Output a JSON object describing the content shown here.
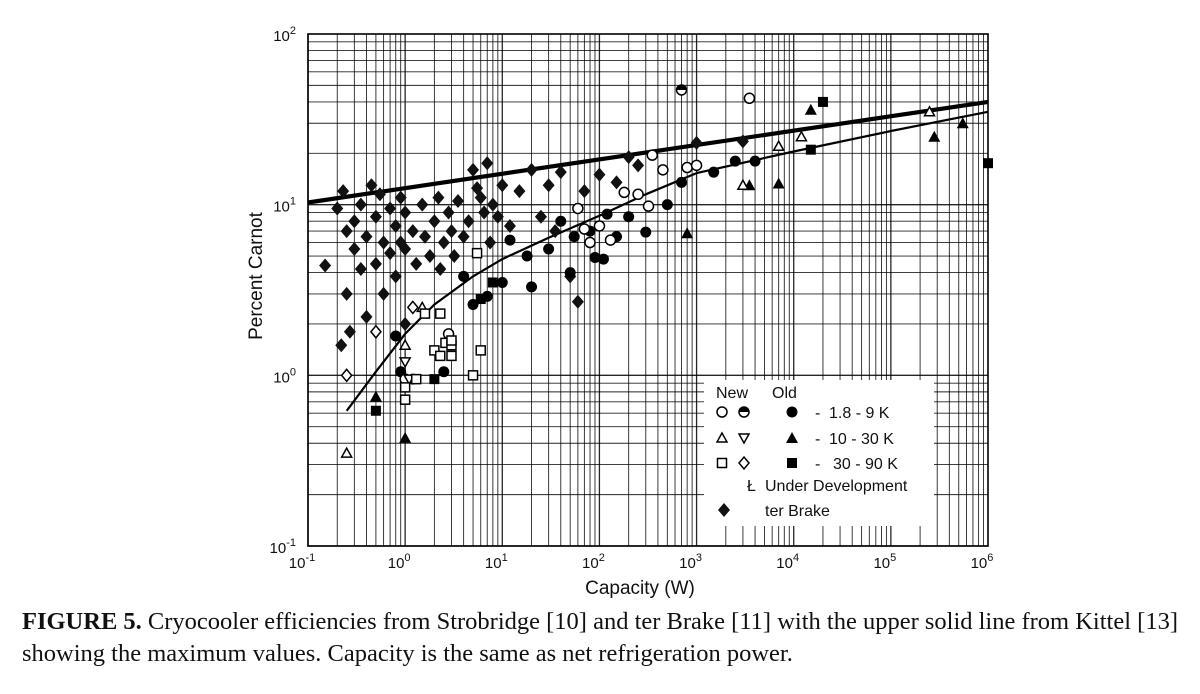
{
  "caption": {
    "label": "FIGURE 5.",
    "text": "Cryocooler efficiencies from Strobridge [10] and ter Brake [11] with the upper solid line from Kittel [13] showing the maximum values.  Capacity is the same as net refrigeration power."
  },
  "chart_data": {
    "type": "scatter",
    "title": "",
    "xlabel": "Capacity (W)",
    "ylabel": "Percent Carnot",
    "xscale": "log",
    "yscale": "log",
    "xlim": [
      0.1,
      1000000
    ],
    "ylim": [
      0.1,
      100
    ],
    "grid": true,
    "x_ticks": [
      {
        "base": "10",
        "exp": "-1"
      },
      {
        "base": "10",
        "exp": "0"
      },
      {
        "base": "10",
        "exp": "1"
      },
      {
        "base": "10",
        "exp": "2"
      },
      {
        "base": "10",
        "exp": "3"
      },
      {
        "base": "10",
        "exp": "4"
      },
      {
        "base": "10",
        "exp": "5"
      },
      {
        "base": "10",
        "exp": "6"
      }
    ],
    "y_ticks": [
      {
        "base": "10",
        "exp": "-1"
      },
      {
        "base": "10",
        "exp": "0"
      },
      {
        "base": "10",
        "exp": "1"
      },
      {
        "base": "10",
        "exp": "2"
      }
    ],
    "legend": {
      "placement": "bottom-right",
      "col_new": "New",
      "col_old": "Old",
      "dash": "-",
      "rows": [
        {
          "label": "1.8 - 9 K",
          "new": [
            "circle-open",
            "circle-half"
          ],
          "old": "circle-filled"
        },
        {
          "label": "10 - 30 K",
          "new": [
            "triangle-up-open",
            "triangle-down-open"
          ],
          "old": "triangle-filled"
        },
        {
          "label": "30 - 90 K",
          "new": [
            "square-open",
            "diamond-open"
          ],
          "old": "square-filled"
        }
      ],
      "dev_symbol": "Ł",
      "dev_label": "Under Development",
      "brake_label": "ter Brake"
    },
    "lines": [
      {
        "name": "Kittel maximum (upper solid line)",
        "style": "thick",
        "points": [
          [
            0.1,
            10.3
          ],
          [
            1000000,
            40
          ]
        ]
      },
      {
        "name": "Strobridge trend",
        "style": "thin",
        "points": [
          [
            0.25,
            0.62
          ],
          [
            0.5,
            1.05
          ],
          [
            1,
            1.75
          ],
          [
            2,
            2.6
          ],
          [
            5,
            3.8
          ],
          [
            10,
            4.8
          ],
          [
            30,
            6.4
          ],
          [
            100,
            8.6
          ],
          [
            300,
            11.5
          ],
          [
            1000,
            15.3
          ],
          [
            10000,
            20.5
          ],
          [
            100000,
            27
          ],
          [
            1000000,
            35
          ]
        ]
      }
    ],
    "series": [
      {
        "name": "Old 1.8 - 9 K",
        "marker": "circle-filled",
        "points": [
          [
            0.8,
            1.7
          ],
          [
            0.9,
            1.05
          ],
          [
            1.2,
            0.95
          ],
          [
            2.5,
            1.05
          ],
          [
            4,
            3.8
          ],
          [
            5,
            2.6
          ],
          [
            7,
            2.9
          ],
          [
            10,
            3.5
          ],
          [
            12,
            6.2
          ],
          [
            18,
            5.0
          ],
          [
            20,
            3.3
          ],
          [
            30,
            5.5
          ],
          [
            40,
            8.0
          ],
          [
            50,
            4.0
          ],
          [
            55,
            6.5
          ],
          [
            80,
            7.0
          ],
          [
            90,
            4.9
          ],
          [
            110,
            4.8
          ],
          [
            120,
            8.8
          ],
          [
            150,
            6.5
          ],
          [
            200,
            8.5
          ],
          [
            300,
            6.9
          ],
          [
            500,
            10.0
          ],
          [
            700,
            13.5
          ],
          [
            1500,
            15.5
          ],
          [
            2500,
            18.0
          ],
          [
            4000,
            18.0
          ]
        ]
      },
      {
        "name": "New 1.8 - 9 K",
        "marker": "circle-open",
        "points": [
          [
            1.0,
            0.95
          ],
          [
            2.8,
            1.75
          ],
          [
            60,
            9.5
          ],
          [
            70,
            7.2
          ],
          [
            80,
            6.0
          ],
          [
            100,
            7.5
          ],
          [
            130,
            6.2
          ],
          [
            180,
            11.8
          ],
          [
            250,
            11.5
          ],
          [
            320,
            9.8
          ],
          [
            350,
            19.5
          ],
          [
            450,
            16.0
          ],
          [
            800,
            16.5
          ],
          [
            1000,
            17.0
          ],
          [
            3500,
            42.0
          ]
        ]
      },
      {
        "name": "New half 1.8 - 9 K",
        "marker": "circle-half",
        "points": [
          [
            700,
            47.0
          ]
        ]
      },
      {
        "name": "Old 10 - 30 K",
        "marker": "triangle-filled",
        "points": [
          [
            0.5,
            0.75
          ],
          [
            1.0,
            0.43
          ],
          [
            800,
            6.8
          ],
          [
            3500,
            13.0
          ],
          [
            7000,
            13.3
          ],
          [
            15000,
            36.0
          ],
          [
            280000,
            25.0
          ],
          [
            550000,
            30.0
          ]
        ]
      },
      {
        "name": "New 10 - 30 K",
        "marker": "triangle-up-open",
        "points": [
          [
            0.25,
            0.35
          ],
          [
            1.0,
            1.5
          ],
          [
            1.5,
            2.5
          ],
          [
            3000,
            13.0
          ],
          [
            7000,
            22.0
          ],
          [
            12000,
            25.0
          ],
          [
            250000,
            35.0
          ]
        ]
      },
      {
        "name": "New 10 - 30 K (down)",
        "marker": "triangle-down-open",
        "points": [
          [
            1.0,
            1.2
          ],
          [
            1.1,
            0.95
          ]
        ]
      },
      {
        "name": "Old 30 - 90 K",
        "marker": "square-filled",
        "points": [
          [
            0.5,
            0.62
          ],
          [
            2.0,
            0.95
          ],
          [
            6.0,
            2.8
          ],
          [
            8.0,
            3.5
          ],
          [
            20000,
            40.0
          ],
          [
            15000,
            21.0
          ],
          [
            1000000,
            17.5
          ]
        ]
      },
      {
        "name": "New 30 - 90 K",
        "marker": "square-open",
        "points": [
          [
            1.0,
            0.72
          ],
          [
            1.0,
            0.85
          ],
          [
            1.3,
            0.95
          ],
          [
            2.0,
            1.4
          ],
          [
            2.3,
            1.3
          ],
          [
            2.6,
            1.55
          ],
          [
            3.0,
            1.5
          ],
          [
            3.0,
            1.6
          ],
          [
            3.0,
            1.3
          ],
          [
            5.0,
            1.0
          ],
          [
            5.5,
            5.2
          ],
          [
            6.0,
            1.4
          ],
          [
            1.6,
            2.3
          ],
          [
            2.3,
            2.3
          ]
        ]
      },
      {
        "name": "New 30 - 90 K (diamond)",
        "marker": "diamond-open",
        "points": [
          [
            0.25,
            1.0
          ],
          [
            0.5,
            1.8
          ],
          [
            1.2,
            2.5
          ]
        ]
      },
      {
        "name": "ter Brake",
        "marker": "diamond-filled",
        "points": [
          [
            0.15,
            4.4
          ],
          [
            0.2,
            9.5
          ],
          [
            0.22,
            1.5
          ],
          [
            0.23,
            12.0
          ],
          [
            0.25,
            7.0
          ],
          [
            0.25,
            3.0
          ],
          [
            0.27,
            1.8
          ],
          [
            0.3,
            5.5
          ],
          [
            0.3,
            8.0
          ],
          [
            0.35,
            10.0
          ],
          [
            0.35,
            4.2
          ],
          [
            0.4,
            6.5
          ],
          [
            0.4,
            2.2
          ],
          [
            0.45,
            13.0
          ],
          [
            0.5,
            8.5
          ],
          [
            0.5,
            4.5
          ],
          [
            0.55,
            11.5
          ],
          [
            0.6,
            6.0
          ],
          [
            0.6,
            3.0
          ],
          [
            0.7,
            9.5
          ],
          [
            0.7,
            5.2
          ],
          [
            0.8,
            7.5
          ],
          [
            0.8,
            3.8
          ],
          [
            0.9,
            11.0
          ],
          [
            0.9,
            6.0
          ],
          [
            1.0,
            9.0
          ],
          [
            1.0,
            5.5
          ],
          [
            1.0,
            2.0
          ],
          [
            1.2,
            7.0
          ],
          [
            1.3,
            4.5
          ],
          [
            1.5,
            10.0
          ],
          [
            1.6,
            6.5
          ],
          [
            1.8,
            5.0
          ],
          [
            2.0,
            8.0
          ],
          [
            2.2,
            11.0
          ],
          [
            2.3,
            4.2
          ],
          [
            2.5,
            6.0
          ],
          [
            2.8,
            9.0
          ],
          [
            3.0,
            7.0
          ],
          [
            3.2,
            5.0
          ],
          [
            3.5,
            10.5
          ],
          [
            4.0,
            6.5
          ],
          [
            4.5,
            8.0
          ],
          [
            5.0,
            16.0
          ],
          [
            5.5,
            12.5
          ],
          [
            6.0,
            11.0
          ],
          [
            6.5,
            9.0
          ],
          [
            7.0,
            17.5
          ],
          [
            7.5,
            6.0
          ],
          [
            8.0,
            10.0
          ],
          [
            9.0,
            8.5
          ],
          [
            10.0,
            13.0
          ],
          [
            12.0,
            7.5
          ],
          [
            15.0,
            12.0
          ],
          [
            20.0,
            16.0
          ],
          [
            25.0,
            8.5
          ],
          [
            30.0,
            13.0
          ],
          [
            35.0,
            7.0
          ],
          [
            40.0,
            15.5
          ],
          [
            50.0,
            3.8
          ],
          [
            60.0,
            2.7
          ],
          [
            70.0,
            12.0
          ],
          [
            100.0,
            15.0
          ],
          [
            150.0,
            13.5
          ],
          [
            200.0,
            19.0
          ],
          [
            250.0,
            17.0
          ],
          [
            1000.0,
            23.0
          ],
          [
            3000.0,
            23.5
          ]
        ]
      }
    ]
  }
}
